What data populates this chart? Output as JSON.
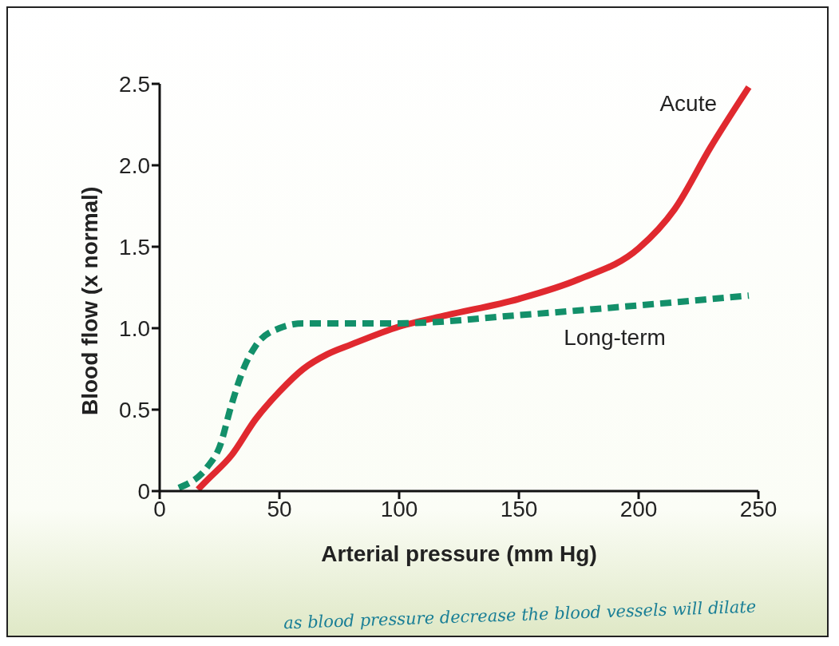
{
  "chart_data": {
    "type": "line",
    "xlabel": "Arterial pressure (mm Hg)",
    "ylabel": "Blood flow (x normal)",
    "xlim": [
      0,
      250
    ],
    "xticks": [
      0,
      50,
      100,
      150,
      200,
      250
    ],
    "ylim": [
      0,
      2.5
    ],
    "yticks": [
      {
        "value": 0,
        "label": "0"
      },
      {
        "value": 0.5,
        "label": "0.5"
      },
      {
        "value": 1,
        "label": "1.0"
      },
      {
        "value": 1.5,
        "label": "1.5"
      },
      {
        "value": 2,
        "label": "2.0"
      },
      {
        "value": 2.5,
        "label": "2.5"
      }
    ],
    "grid": false,
    "legend": false,
    "series": [
      {
        "name": "Acute",
        "color": "#e0292f",
        "line_style": "solid",
        "x": [
          16,
          20,
          30,
          40,
          50,
          60,
          70,
          80,
          100,
          120,
          150,
          175,
          200,
          215,
          230,
          246
        ],
        "values": [
          0.01,
          0.07,
          0.22,
          0.44,
          0.61,
          0.75,
          0.84,
          0.9,
          1.01,
          1.08,
          1.18,
          1.3,
          1.49,
          1.73,
          2.11,
          2.48
        ]
      },
      {
        "name": "Long-term",
        "color": "#13906a",
        "line_style": "dashed",
        "x": [
          8,
          20,
          25,
          30,
          35,
          40,
          50,
          60,
          100,
          150,
          200,
          246
        ],
        "values": [
          0.02,
          0.15,
          0.27,
          0.53,
          0.75,
          0.89,
          1.0,
          1.03,
          1.03,
          1.08,
          1.14,
          1.2
        ]
      }
    ],
    "annotations": [
      "as blood pressure decrease the blood vessels will dilate"
    ]
  }
}
